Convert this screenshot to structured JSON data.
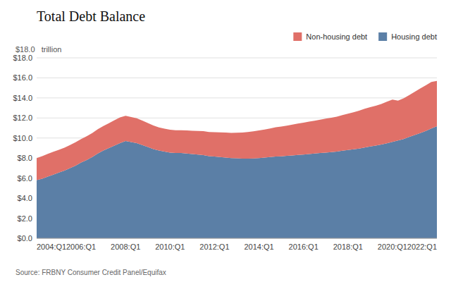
{
  "chart_data": {
    "type": "area",
    "stacked": true,
    "title": "Total Debt Balance",
    "subtitle": "$18.0   trillion",
    "source": "Source: FRBNY Consumer Credit Panel/Equifax",
    "categories": [
      "2004:Q1",
      null,
      null,
      null,
      null,
      null,
      null,
      null,
      "2006:Q1",
      null,
      null,
      null,
      null,
      null,
      null,
      null,
      "2008:Q1",
      null,
      null,
      null,
      null,
      null,
      null,
      null,
      "2010:Q1",
      null,
      null,
      null,
      null,
      null,
      null,
      null,
      "2012:Q1",
      null,
      null,
      null,
      null,
      null,
      null,
      null,
      "2014:Q1",
      null,
      null,
      null,
      null,
      null,
      null,
      null,
      "2016:Q1",
      null,
      null,
      null,
      null,
      null,
      null,
      null,
      "2018:Q1",
      null,
      null,
      null,
      null,
      null,
      null,
      null,
      "2020:Q1",
      null,
      null,
      null,
      null,
      null,
      null,
      null,
      "2022:Q1"
    ],
    "series": [
      {
        "name": "Housing debt",
        "color": "#5b7fa6",
        "values": [
          5.8,
          5.95,
          6.15,
          6.35,
          6.55,
          6.75,
          7.0,
          7.25,
          7.55,
          7.8,
          8.1,
          8.45,
          8.75,
          9.0,
          9.25,
          9.5,
          9.7,
          9.6,
          9.5,
          9.3,
          9.1,
          8.9,
          8.75,
          8.65,
          8.55,
          8.5,
          8.5,
          8.45,
          8.4,
          8.35,
          8.3,
          8.2,
          8.15,
          8.1,
          8.05,
          8.0,
          7.98,
          7.95,
          7.95,
          7.97,
          8.0,
          8.05,
          8.1,
          8.15,
          8.18,
          8.22,
          8.27,
          8.32,
          8.35,
          8.4,
          8.45,
          8.5,
          8.55,
          8.6,
          8.65,
          8.73,
          8.8,
          8.87,
          8.95,
          9.05,
          9.15,
          9.25,
          9.35,
          9.48,
          9.62,
          9.75,
          9.9,
          10.1,
          10.3,
          10.5,
          10.7,
          10.95,
          11.18
        ]
      },
      {
        "name": "Non-housing debt",
        "color": "#e07068",
        "values": [
          2.2,
          2.25,
          2.27,
          2.28,
          2.28,
          2.28,
          2.3,
          2.33,
          2.35,
          2.38,
          2.4,
          2.43,
          2.45,
          2.47,
          2.52,
          2.55,
          2.52,
          2.5,
          2.47,
          2.45,
          2.4,
          2.35,
          2.3,
          2.28,
          2.27,
          2.28,
          2.28,
          2.3,
          2.32,
          2.35,
          2.38,
          2.4,
          2.43,
          2.47,
          2.5,
          2.52,
          2.55,
          2.6,
          2.65,
          2.7,
          2.75,
          2.8,
          2.85,
          2.92,
          2.97,
          3.02,
          3.07,
          3.13,
          3.18,
          3.23,
          3.28,
          3.33,
          3.38,
          3.43,
          3.48,
          3.55,
          3.62,
          3.7,
          3.78,
          3.87,
          3.92,
          3.97,
          4.05,
          4.15,
          4.22,
          3.97,
          4.05,
          4.18,
          4.3,
          4.45,
          4.55,
          4.65,
          4.52
        ]
      }
    ],
    "ylim": [
      0,
      18.0
    ],
    "yticks": [
      {
        "value": 0.0,
        "label": "$0.0"
      },
      {
        "value": 2.0,
        "label": "$2.0"
      },
      {
        "value": 4.0,
        "label": "$4.0"
      },
      {
        "value": 6.0,
        "label": "$6.0"
      },
      {
        "value": 8.0,
        "label": "$8.0"
      },
      {
        "value": 10.0,
        "label": "$10.0"
      },
      {
        "value": 12.0,
        "label": "$12.0"
      },
      {
        "value": 14.0,
        "label": "$14.0"
      },
      {
        "value": 16.0,
        "label": "$16.0"
      },
      {
        "value": 18.0,
        "label": "$18.0"
      }
    ],
    "grid": true,
    "legend": "upper right"
  }
}
